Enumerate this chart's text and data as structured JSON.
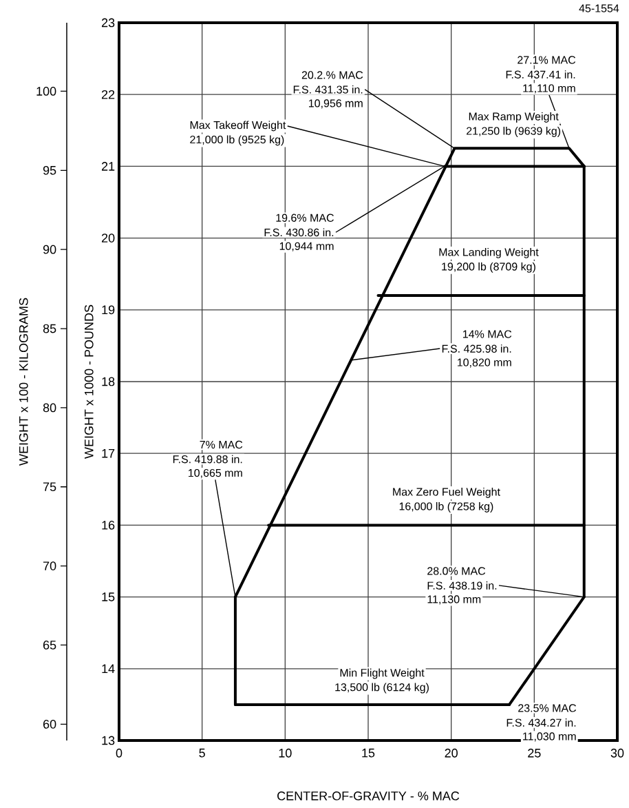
{
  "chart_data": {
    "type": "line",
    "xlabel": "CENTER-OF-GRAVITY - % MAC",
    "ylabel": "WEIGHT x 1000 - POUNDS",
    "y2label": "WEIGHT x 100 - KILOGRAMS",
    "xlim": [
      0,
      30
    ],
    "xticks": [
      0,
      5,
      10,
      15,
      20,
      25,
      30
    ],
    "ylim": [
      13,
      23
    ],
    "yticks": [
      13,
      14,
      15,
      16,
      17,
      18,
      19,
      20,
      21,
      22,
      23
    ],
    "y2lim": [
      58.97,
      104.33
    ],
    "y2ticks": [
      60,
      65,
      70,
      75,
      80,
      85,
      90,
      95,
      100
    ],
    "grid": true,
    "marker": "none",
    "line_style": "solid",
    "series": [
      {
        "color": "#000000",
        "x": [
          7,
          20.2,
          27.1,
          28
        ],
        "values": [
          15,
          21.25,
          21.25,
          21
        ]
      },
      {
        "color": "#000000",
        "x": [
          28,
          28
        ],
        "values": [
          21,
          15
        ]
      },
      {
        "color": "#000000",
        "x": [
          23.5,
          28
        ],
        "values": [
          13.5,
          15
        ]
      },
      {
        "color": "#000000",
        "x": [
          7,
          23.5
        ],
        "values": [
          13.5,
          13.5
        ]
      },
      {
        "color": "#000000",
        "x": [
          7,
          7
        ],
        "values": [
          13.5,
          15
        ]
      },
      {
        "color": "#000000",
        "x": [
          9.0,
          28
        ],
        "values": [
          16,
          16
        ]
      },
      {
        "color": "#000000",
        "x": [
          15.6,
          28
        ],
        "values": [
          19.2,
          19.2
        ]
      },
      {
        "color": "#000000",
        "x": [
          19.6,
          28
        ],
        "values": [
          21,
          21
        ]
      }
    ],
    "annotations": [
      "20.2.% MAC",
      {
        "text": "F.S. 431.35 in.",
        "x": 20.2,
        "y": 21.25
      },
      "10,956 mm",
      {
        "text": "Max Takeoff Weight",
        "x": 19.6,
        "y": 21
      },
      "21,000 lb (9525 kg)",
      "19.6% MAC",
      {
        "text": "F.S. 430.86 in.",
        "x": 19.6,
        "y": 21
      },
      "10,944 mm",
      "27.1% MAC",
      "F.S. 437.41 in.",
      {
        "text": "11,110 mm",
        "x": 27.1,
        "y": 21.25
      },
      "Max Ramp Weight",
      "21,250 lb (9639 kg)",
      "Max Landing Weight",
      "19,200 lb (8709 kg)",
      "14% MAC",
      {
        "text": "F.S. 425.98 in.",
        "x": 14,
        "y": 18.3
      },
      "10,820 mm",
      "7% MAC",
      "F.S. 419.88 in.",
      {
        "text": "10,665 mm",
        "x": 7,
        "y": 15
      },
      "Max Zero Fuel Weight",
      "16,000 lb (7258 kg)",
      "28.0% MAC",
      {
        "text": "F.S. 438.19 in.",
        "x": 28,
        "y": 15
      },
      "11,130 mm",
      "Min Flight Weight",
      "13,500 lb (6124 kg)",
      "23.5% MAC",
      "F.S. 434.27 in.",
      "11,030 mm",
      "45-1554"
    ]
  }
}
